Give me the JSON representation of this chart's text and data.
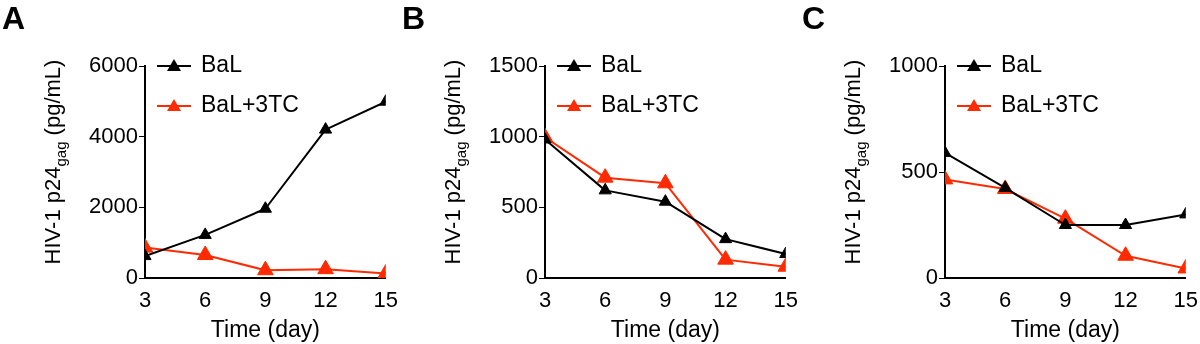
{
  "chart_data": [
    {
      "type": "line",
      "title": "A",
      "xlabel": "Time (day)",
      "ylabel": "HIV-1 p24$_{gag}$ (pg/mL)",
      "x": [
        3,
        6,
        9,
        12,
        15
      ],
      "xlim": [
        3,
        15
      ],
      "xticks": [
        3,
        6,
        9,
        12,
        15
      ],
      "ylim": [
        0,
        6000
      ],
      "yticks": [
        0,
        2000,
        4000,
        6000
      ],
      "legend": "top left",
      "marker": "triangle",
      "line_style": "solid",
      "grid": false,
      "series": [
        {
          "name": "BaL",
          "color": "#000000",
          "values": [
            620,
            1220,
            1960,
            4200,
            4990
          ]
        },
        {
          "name": "BaL+3TC",
          "color": "#ff2a00",
          "values": [
            860,
            650,
            220,
            250,
            130
          ]
        }
      ]
    },
    {
      "type": "line",
      "title": "B",
      "xlabel": "Time (day)",
      "ylabel": "HIV-1 p24$_{gag}$ (pg/mL)",
      "x": [
        3,
        6,
        9,
        12,
        15
      ],
      "xlim": [
        3,
        15
      ],
      "xticks": [
        3,
        6,
        9,
        12,
        15
      ],
      "ylim": [
        0,
        1500
      ],
      "yticks": [
        0,
        500,
        1000,
        1500
      ],
      "legend": "top left",
      "marker": "triangle",
      "line_style": "solid",
      "grid": false,
      "series": [
        {
          "name": "BaL",
          "color": "#000000",
          "values": [
            980,
            620,
            540,
            275,
            170
          ]
        },
        {
          "name": "BaL+3TC",
          "color": "#ff2a00",
          "values": [
            995,
            710,
            670,
            130,
            80
          ]
        }
      ]
    },
    {
      "type": "line",
      "title": "C",
      "xlabel": "Time (day)",
      "ylabel": "HIV-1 p24$_{gag}$ (pg/mL)",
      "x": [
        3,
        6,
        9,
        12,
        15
      ],
      "xlim": [
        3,
        15
      ],
      "xticks": [
        3,
        6,
        9,
        12,
        15
      ],
      "ylim": [
        0,
        1000
      ],
      "yticks": [
        0,
        500,
        1000
      ],
      "legend": "top left",
      "marker": "triangle",
      "line_style": "solid",
      "grid": false,
      "series": [
        {
          "name": "BaL",
          "color": "#000000",
          "values": [
            590,
            425,
            250,
            250,
            300
          ]
        },
        {
          "name": "BaL+3TC",
          "color": "#ff2a00",
          "values": [
            465,
            420,
            280,
            105,
            45
          ]
        }
      ]
    }
  ]
}
